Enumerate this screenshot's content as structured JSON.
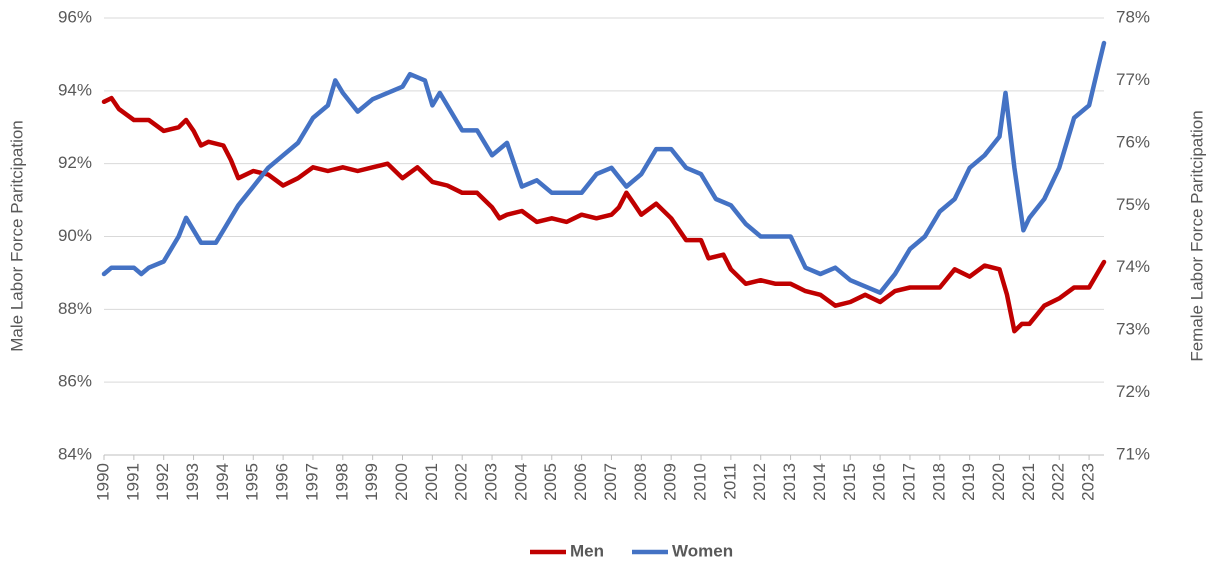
{
  "chart_data": {
    "type": "line",
    "y_label": "Male Labor Force Paritcipation",
    "y2_label": "Female Labor Force Paritcipation",
    "xlim": [
      1990,
      2023.5
    ],
    "xticks": [
      1990,
      1991,
      1992,
      1993,
      1994,
      1995,
      1996,
      1997,
      1998,
      1999,
      2000,
      2001,
      2002,
      2003,
      2004,
      2005,
      2006,
      2007,
      2008,
      2009,
      2010,
      2011,
      2012,
      2013,
      2014,
      2015,
      2016,
      2017,
      2018,
      2019,
      2020,
      2021,
      2022,
      2023
    ],
    "ylim": [
      84,
      96
    ],
    "yticks": [
      {
        "value": 84,
        "label": "84%"
      },
      {
        "value": 86,
        "label": "86%"
      },
      {
        "value": 88,
        "label": "88%"
      },
      {
        "value": 90,
        "label": "90%"
      },
      {
        "value": 92,
        "label": "92%"
      },
      {
        "value": 94,
        "label": "94%"
      },
      {
        "value": 96,
        "label": "96%"
      }
    ],
    "y2lim": [
      71,
      78
    ],
    "y2ticks": [
      {
        "value": 71,
        "label": "71%"
      },
      {
        "value": 72,
        "label": "72%"
      },
      {
        "value": 73,
        "label": "73%"
      },
      {
        "value": 74,
        "label": "74%"
      },
      {
        "value": 75,
        "label": "75%"
      },
      {
        "value": 76,
        "label": "76%"
      },
      {
        "value": 77,
        "label": "77%"
      },
      {
        "value": 78,
        "label": "78%"
      }
    ],
    "grid": true,
    "legend": "bottom",
    "series": [
      {
        "name": "Men",
        "color": "#c00000",
        "x": [
          1990,
          1990.25,
          1990.5,
          1991,
          1991.5,
          1992,
          1992.5,
          1992.75,
          1993,
          1993.25,
          1993.5,
          1994,
          1994.25,
          1994.5,
          1995,
          1995.5,
          1996,
          1996.5,
          1997,
          1997.5,
          1998,
          1998.5,
          1999,
          1999.5,
          2000,
          2000.5,
          2001,
          2001.5,
          2002,
          2002.5,
          2003,
          2003.25,
          2003.5,
          2004,
          2004.5,
          2005,
          2005.5,
          2006,
          2006.5,
          2007,
          2007.25,
          2007.5,
          2007.75,
          2008,
          2008.5,
          2009,
          2009.5,
          2010,
          2010.25,
          2010.75,
          2011,
          2011.5,
          2012,
          2012.5,
          2013,
          2013.5,
          2014,
          2014.5,
          2015,
          2015.5,
          2016,
          2016.5,
          2017,
          2017.5,
          2018,
          2018.5,
          2019,
          2019.5,
          2020,
          2020.25,
          2020.5,
          2020.75,
          2021,
          2021.5,
          2022,
          2022.5,
          2023,
          2023.5
        ],
        "values": [
          93.7,
          93.8,
          93.5,
          93.2,
          93.2,
          92.9,
          93.0,
          93.2,
          92.9,
          92.5,
          92.6,
          92.5,
          92.1,
          91.6,
          91.8,
          91.7,
          91.4,
          91.6,
          91.9,
          91.8,
          91.9,
          91.8,
          91.9,
          92.0,
          91.6,
          91.9,
          91.5,
          91.4,
          91.2,
          91.2,
          90.8,
          90.5,
          90.6,
          90.7,
          90.4,
          90.5,
          90.4,
          90.6,
          90.5,
          90.6,
          90.8,
          91.2,
          90.9,
          90.6,
          90.9,
          90.5,
          89.9,
          89.9,
          89.4,
          89.5,
          89.1,
          88.7,
          88.8,
          88.7,
          88.7,
          88.5,
          88.4,
          88.1,
          88.2,
          88.4,
          88.2,
          88.5,
          88.6,
          88.6,
          88.6,
          89.1,
          88.9,
          89.2,
          89.1,
          88.4,
          87.4,
          87.6,
          87.6,
          88.1,
          88.3,
          88.6,
          88.6,
          89.3
        ]
      },
      {
        "name": "Women",
        "color": "#4472c4",
        "axis": "y2",
        "x": [
          1990,
          1990.25,
          1991,
          1991.25,
          1991.5,
          1992,
          1992.5,
          1992.75,
          1993,
          1993.25,
          1993.75,
          1994,
          1994.5,
          1995,
          1995.5,
          1996,
          1996.5,
          1997,
          1997.5,
          1997.75,
          1998,
          1998.5,
          1999,
          1999.5,
          2000,
          2000.25,
          2000.75,
          2001,
          2001.25,
          2001.75,
          2002,
          2002.5,
          2003,
          2003.5,
          2004,
          2004.5,
          2005,
          2006,
          2006.5,
          2007,
          2007.5,
          2008,
          2008.5,
          2009,
          2009.5,
          2010,
          2010.5,
          2011,
          2011.5,
          2012,
          2013,
          2013.5,
          2014,
          2014.5,
          2015,
          2015.5,
          2016,
          2016.5,
          2017,
          2017.5,
          2018,
          2018.5,
          2019,
          2019.5,
          2020,
          2020.2,
          2020.5,
          2020.8,
          2021,
          2021.5,
          2022,
          2022.5,
          2023,
          2023.3,
          2023.5
        ],
        "values": [
          73.9,
          74.0,
          74.0,
          73.9,
          74.0,
          74.1,
          74.5,
          74.8,
          74.6,
          74.4,
          74.4,
          74.6,
          75.0,
          75.3,
          75.6,
          75.8,
          76.0,
          76.4,
          76.6,
          77.0,
          76.8,
          76.5,
          76.7,
          76.8,
          76.9,
          77.1,
          77.0,
          76.6,
          76.8,
          76.4,
          76.2,
          76.2,
          75.8,
          76.0,
          75.3,
          75.4,
          75.2,
          75.2,
          75.5,
          75.6,
          75.3,
          75.5,
          75.9,
          75.9,
          75.6,
          75.5,
          75.1,
          75.0,
          74.7,
          74.5,
          74.5,
          74.0,
          73.9,
          74.0,
          73.8,
          73.7,
          73.6,
          73.9,
          74.3,
          74.5,
          74.9,
          75.1,
          75.6,
          75.8,
          76.1,
          76.8,
          75.6,
          74.6,
          74.8,
          75.1,
          75.6,
          76.4,
          76.6,
          77.2,
          77.6
        ]
      }
    ]
  }
}
